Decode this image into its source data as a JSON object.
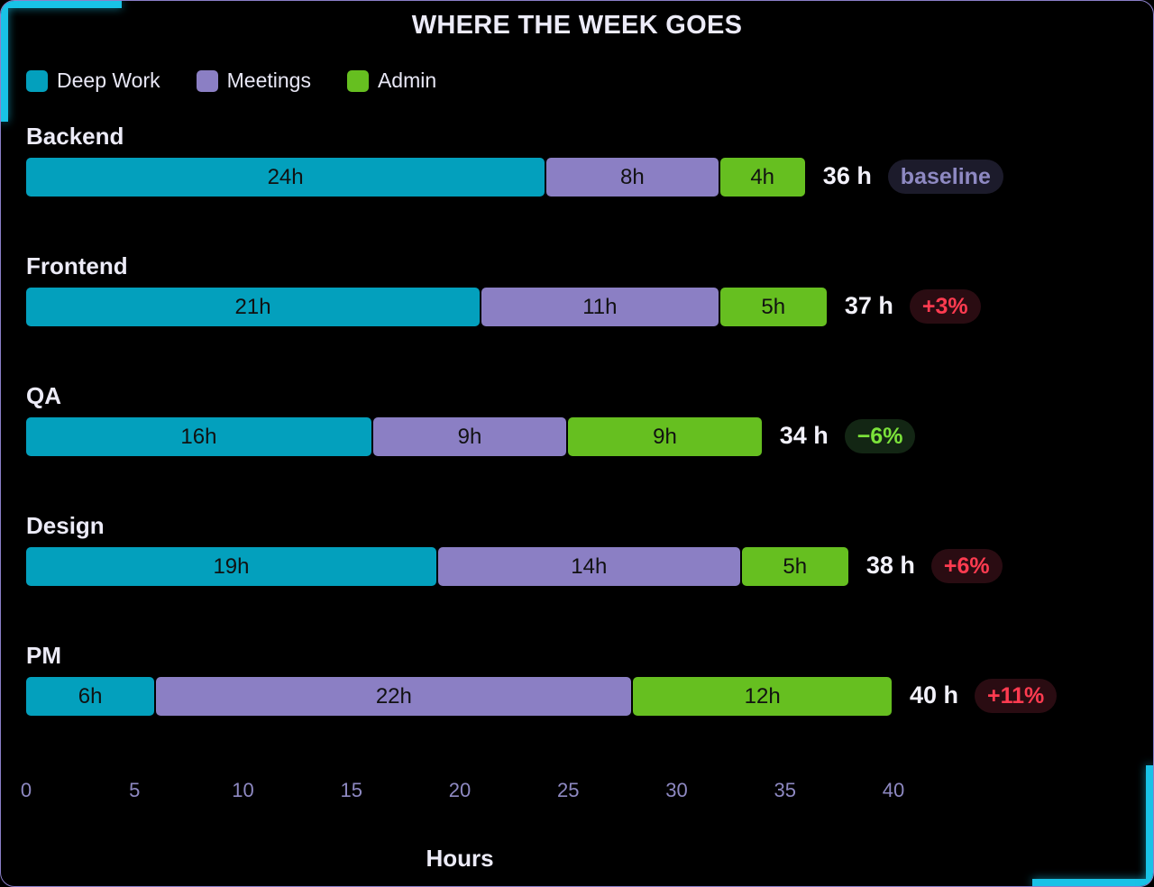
{
  "colors": {
    "deep_work": "#03a0bd",
    "meetings": "#8b7fc4",
    "admin": "#66bf20",
    "badge_neutral_bg": "#1c1b2b",
    "badge_neutral_fg": "#8e89c2",
    "badge_up_bg": "#2a0c12",
    "badge_up_fg": "#ff3b50",
    "badge_down_bg": "#132614",
    "badge_down_fg": "#7be23a"
  },
  "chart_data": {
    "type": "bar",
    "orientation": "horizontal",
    "stacked": true,
    "title": "WHERE THE WEEK GOES",
    "xlabel": "Hours",
    "ylabel": "",
    "xlim": [
      0,
      40
    ],
    "xticks": [
      "0",
      "5",
      "10",
      "15",
      "20",
      "25",
      "30",
      "35",
      "40"
    ],
    "grid": false,
    "legend_position": "top-left",
    "categories": [
      "Backend",
      "Frontend",
      "QA",
      "Design",
      "PM"
    ],
    "series": [
      {
        "name": "Deep Work",
        "key": "deep_work",
        "values": [
          24,
          21,
          16,
          19,
          6
        ],
        "labels": [
          "24h",
          "21h",
          "16h",
          "19h",
          "6h"
        ]
      },
      {
        "name": "Meetings",
        "key": "meetings",
        "values": [
          8,
          11,
          9,
          14,
          22
        ],
        "labels": [
          "8h",
          "11h",
          "9h",
          "14h",
          "22h"
        ]
      },
      {
        "name": "Admin",
        "key": "admin",
        "values": [
          4,
          5,
          9,
          5,
          12
        ],
        "labels": [
          "4h",
          "5h",
          "9h",
          "5h",
          "12h"
        ]
      }
    ],
    "totals": [
      "36 h",
      "37 h",
      "34 h",
      "38 h",
      "40 h"
    ],
    "badges": [
      {
        "text": "baseline",
        "kind": "neutral"
      },
      {
        "text": "+3%",
        "kind": "up"
      },
      {
        "text": "−6%",
        "kind": "down"
      },
      {
        "text": "+6%",
        "kind": "up"
      },
      {
        "text": "+11%",
        "kind": "up"
      }
    ]
  }
}
